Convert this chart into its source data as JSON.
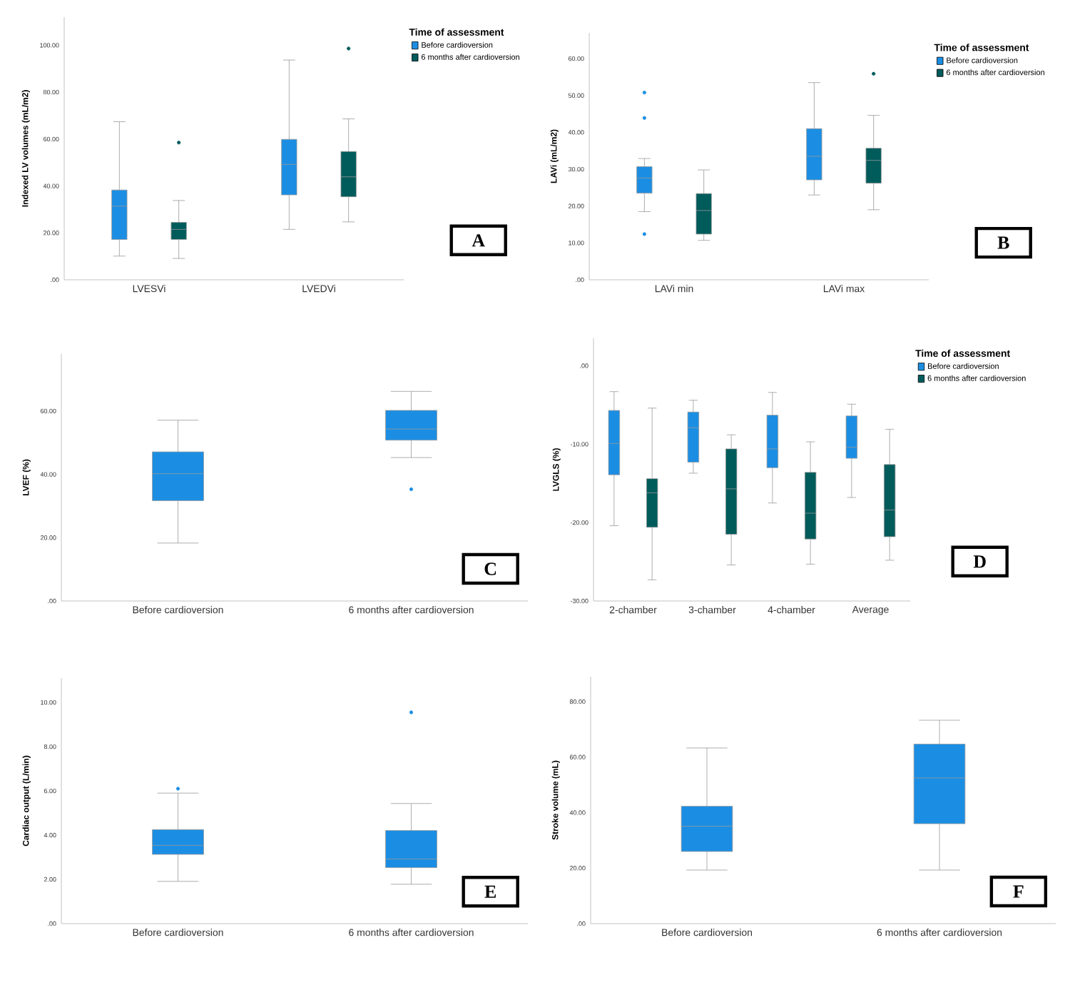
{
  "chart_data": [
    {
      "type": "box",
      "categories": [
        "LVESVi",
        "LVEDVi"
      ],
      "ylabel": "Indexed LV volumes (mL/m2)",
      "legend_title": "Time of assessment",
      "legend": "top right",
      "annotations": [
        "A"
      ],
      "ylim": [
        0,
        112
      ],
      "yticks": [
        {
          "value": 0,
          "label": ".00"
        },
        {
          "value": 20,
          "label": "20.00"
        },
        {
          "value": 40,
          "label": "40.00"
        },
        {
          "value": 60,
          "label": "60.00"
        },
        {
          "value": 80,
          "label": "80.00"
        },
        {
          "value": 100,
          "label": "100.00"
        }
      ],
      "series": [
        {
          "name": "Before cardioversion",
          "color": "#1b8ee3",
          "boxes": [
            {
              "low": 10.1,
              "q1": 17.2,
              "median": 31.4,
              "q3": 38.3,
              "high": 67.4
            },
            {
              "low": 21.5,
              "q1": 36.2,
              "median": 49.2,
              "q3": 59.9,
              "high": 93.7
            }
          ]
        },
        {
          "name": "6 months after cardioversion",
          "color": "#005b5b",
          "boxes": [
            {
              "low": 9.1,
              "q1": 17.2,
              "median": 21.5,
              "q3": 24.5,
              "high": 33.8,
              "outliers": [
                58.5
              ]
            },
            {
              "low": 24.7,
              "q1": 35.4,
              "median": 43.9,
              "q3": 54.7,
              "high": 68.6,
              "outliers": [
                98.6
              ]
            }
          ]
        }
      ]
    },
    {
      "type": "box",
      "categories": [
        "LAVi min",
        "LAVi max"
      ],
      "ylabel": "LAVi (mL/m2)",
      "legend_title": "Time of assessment",
      "legend": "top right",
      "annotations": [
        "B"
      ],
      "ylim": [
        0,
        67
      ],
      "yticks": [
        {
          "value": 0,
          "label": ".00"
        },
        {
          "value": 10,
          "label": "10.00"
        },
        {
          "value": 20,
          "label": "20.00"
        },
        {
          "value": 30,
          "label": "30.00"
        },
        {
          "value": 40,
          "label": "40.00"
        },
        {
          "value": 50,
          "label": "50.00"
        },
        {
          "value": 60,
          "label": "60.00"
        }
      ],
      "series": [
        {
          "name": "Before cardioversion",
          "color": "#1b8ee3",
          "boxes": [
            {
              "low": 18.5,
              "q1": 23.5,
              "median": 27.6,
              "q3": 30.7,
              "high": 32.9,
              "outliers": [
                50.8,
                43.9,
                12.4
              ]
            },
            {
              "low": 23.0,
              "q1": 27.1,
              "median": 33.5,
              "q3": 41.0,
              "high": 53.5
            }
          ]
        },
        {
          "name": "6 months after cardioversion",
          "color": "#005b5b",
          "boxes": [
            {
              "low": 10.7,
              "q1": 12.4,
              "median": 18.8,
              "q3": 23.4,
              "high": 29.8
            },
            {
              "low": 19.0,
              "q1": 26.2,
              "median": 32.4,
              "q3": 35.7,
              "high": 44.6,
              "outliers": [
                55.9
              ]
            }
          ]
        }
      ]
    },
    {
      "type": "box",
      "categories": [
        "Before cardioversion",
        "6 months after cardioversion"
      ],
      "ylabel": "LVEF (%)",
      "annotations": [
        "C"
      ],
      "ylim": [
        0,
        78
      ],
      "yticks": [
        {
          "value": 0,
          "label": ".00"
        },
        {
          "value": 20,
          "label": "20.00"
        },
        {
          "value": 40,
          "label": "40.00"
        },
        {
          "value": 60,
          "label": "60.00"
        }
      ],
      "series": [
        {
          "color": "#1b8ee3",
          "boxes": [
            {
              "low": 18.3,
              "q1": 31.7,
              "median": 40.2,
              "q3": 47.1,
              "high": 57.1
            },
            {
              "low": 45.3,
              "q1": 50.8,
              "median": 54.3,
              "q3": 60.2,
              "high": 66.2,
              "outliers": [
                35.3
              ]
            }
          ]
        }
      ]
    },
    {
      "type": "box",
      "categories": [
        "2-chamber",
        "3-chamber",
        "4-chamber",
        "Average"
      ],
      "ylabel": "LVGLS (%)",
      "legend_title": "Time of assessment",
      "legend": "top right",
      "annotations": [
        "D"
      ],
      "ylim": [
        -30,
        3.5
      ],
      "yticks": [
        {
          "value": -30,
          "label": "-30.00"
        },
        {
          "value": -20,
          "label": "-20.00"
        },
        {
          "value": -10,
          "label": "-10.00"
        },
        {
          "value": 0,
          "label": ".00"
        }
      ],
      "series": [
        {
          "name": "Before cardioversion",
          "color": "#1b8ee3",
          "boxes": [
            {
              "low": -20.4,
              "q1": -13.9,
              "median": -9.9,
              "q3": -5.7,
              "high": -3.3
            },
            {
              "low": -13.7,
              "q1": -12.3,
              "median": -7.9,
              "q3": -5.9,
              "high": -4.4
            },
            {
              "low": -17.5,
              "q1": -13.0,
              "median": -10.6,
              "q3": -6.3,
              "high": -3.4
            },
            {
              "low": -16.8,
              "q1": -11.8,
              "median": -10.4,
              "q3": -6.4,
              "high": -4.9
            }
          ]
        },
        {
          "name": "6 months after cardioversion",
          "color": "#005b5b",
          "boxes": [
            {
              "low": -27.3,
              "q1": -20.6,
              "median": -16.2,
              "q3": -14.4,
              "high": -5.4
            },
            {
              "low": -25.4,
              "q1": -21.5,
              "median": -15.7,
              "q3": -10.6,
              "high": -8.8
            },
            {
              "low": -25.3,
              "q1": -22.1,
              "median": -18.8,
              "q3": -13.6,
              "high": -9.7
            },
            {
              "low": -24.8,
              "q1": -21.8,
              "median": -18.4,
              "q3": -12.6,
              "high": -8.1
            }
          ]
        }
      ]
    },
    {
      "type": "box",
      "categories": [
        "Before cardioversion",
        "6 months after cardioversion"
      ],
      "ylabel": "Cardiac output (L/min)",
      "annotations": [
        "E"
      ],
      "ylim": [
        0,
        11.1
      ],
      "yticks": [
        {
          "value": 0,
          "label": ".00"
        },
        {
          "value": 2,
          "label": "2.00"
        },
        {
          "value": 4,
          "label": "4.00"
        },
        {
          "value": 6,
          "label": "6.00"
        },
        {
          "value": 8,
          "label": "8.00"
        },
        {
          "value": 10,
          "label": "10.00"
        }
      ],
      "series": [
        {
          "color": "#1b8ee3",
          "boxes": [
            {
              "low": 1.91,
              "q1": 3.13,
              "median": 3.54,
              "q3": 4.25,
              "high": 5.9,
              "outliers": [
                6.1
              ]
            },
            {
              "low": 1.78,
              "q1": 2.53,
              "median": 2.92,
              "q3": 4.21,
              "high": 5.43,
              "outliers": [
                9.55
              ]
            }
          ]
        }
      ]
    },
    {
      "type": "box",
      "categories": [
        "Before cardioversion",
        "6 months after cardioversion"
      ],
      "ylabel": "Stroke volume (mL)",
      "annotations": [
        "F"
      ],
      "ylim": [
        0,
        89
      ],
      "yticks": [
        {
          "value": 0,
          "label": ".00"
        },
        {
          "value": 20,
          "label": "20.00"
        },
        {
          "value": 40,
          "label": "40.00"
        },
        {
          "value": 60,
          "label": "60.00"
        },
        {
          "value": 80,
          "label": "80.00"
        }
      ],
      "series": [
        {
          "color": "#1b8ee3",
          "boxes": [
            {
              "low": 19.3,
              "q1": 26.0,
              "median": 35.1,
              "q3": 42.3,
              "high": 63.3
            },
            {
              "low": 19.3,
              "q1": 36.0,
              "median": 52.5,
              "q3": 64.7,
              "high": 73.3
            }
          ]
        }
      ]
    }
  ]
}
